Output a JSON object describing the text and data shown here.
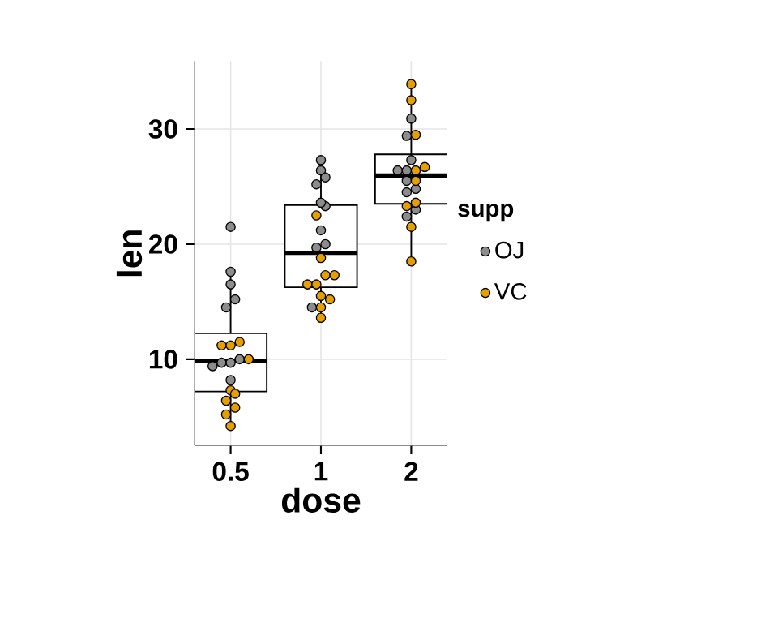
{
  "chart_data": {
    "type": "box",
    "xlabel": "dose",
    "ylabel": "len",
    "legend_title": "supp",
    "categories": [
      "0.5",
      "1",
      "2"
    ],
    "boxes": [
      {
        "low": 4.2,
        "q1": 7.2,
        "median": 9.85,
        "q3": 12.25,
        "high": 17.6
      },
      {
        "low": 13.6,
        "q1": 16.25,
        "median": 19.25,
        "q3": 23.4,
        "high": 27.3
      },
      {
        "low": 18.5,
        "q1": 23.5,
        "median": 25.95,
        "q3": 27.8,
        "high": 33.9
      }
    ],
    "series": [
      {
        "name": "OJ",
        "type": "scatter",
        "color": "#8c8c8c",
        "x": [
          "0.5",
          "0.5",
          "0.5",
          "0.5",
          "0.5",
          "0.5",
          "0.5",
          "0.5",
          "0.5",
          "0.5",
          "1",
          "1",
          "1",
          "1",
          "1",
          "1",
          "1",
          "1",
          "1",
          "1",
          "2",
          "2",
          "2",
          "2",
          "2",
          "2",
          "2",
          "2",
          "2",
          "2"
        ],
        "values": [
          15.2,
          21.5,
          17.6,
          9.7,
          14.5,
          10.0,
          8.2,
          9.4,
          16.5,
          9.7,
          19.7,
          23.3,
          23.6,
          26.4,
          20.0,
          25.2,
          25.8,
          21.2,
          14.5,
          27.3,
          25.5,
          26.4,
          22.4,
          24.5,
          24.8,
          30.9,
          26.4,
          27.3,
          29.4,
          23.0
        ]
      },
      {
        "name": "VC",
        "type": "scatter",
        "color": "#e69f00",
        "x": [
          "0.5",
          "0.5",
          "0.5",
          "0.5",
          "0.5",
          "0.5",
          "0.5",
          "0.5",
          "0.5",
          "0.5",
          "1",
          "1",
          "1",
          "1",
          "1",
          "1",
          "1",
          "1",
          "1",
          "1",
          "2",
          "2",
          "2",
          "2",
          "2",
          "2",
          "2",
          "2",
          "2",
          "2"
        ],
        "values": [
          4.2,
          11.5,
          7.3,
          5.8,
          6.4,
          10.0,
          11.2,
          11.2,
          5.2,
          7.0,
          16.5,
          16.5,
          15.2,
          17.3,
          22.5,
          17.3,
          13.6,
          14.5,
          18.8,
          15.5,
          23.6,
          18.5,
          33.9,
          25.5,
          26.4,
          32.5,
          26.7,
          21.5,
          23.3,
          29.5
        ]
      }
    ],
    "ylim": [
      2.5,
      35.9
    ],
    "yticks": [
      10,
      20,
      30
    ],
    "grid": true,
    "legend": "right",
    "marker": "circle"
  }
}
